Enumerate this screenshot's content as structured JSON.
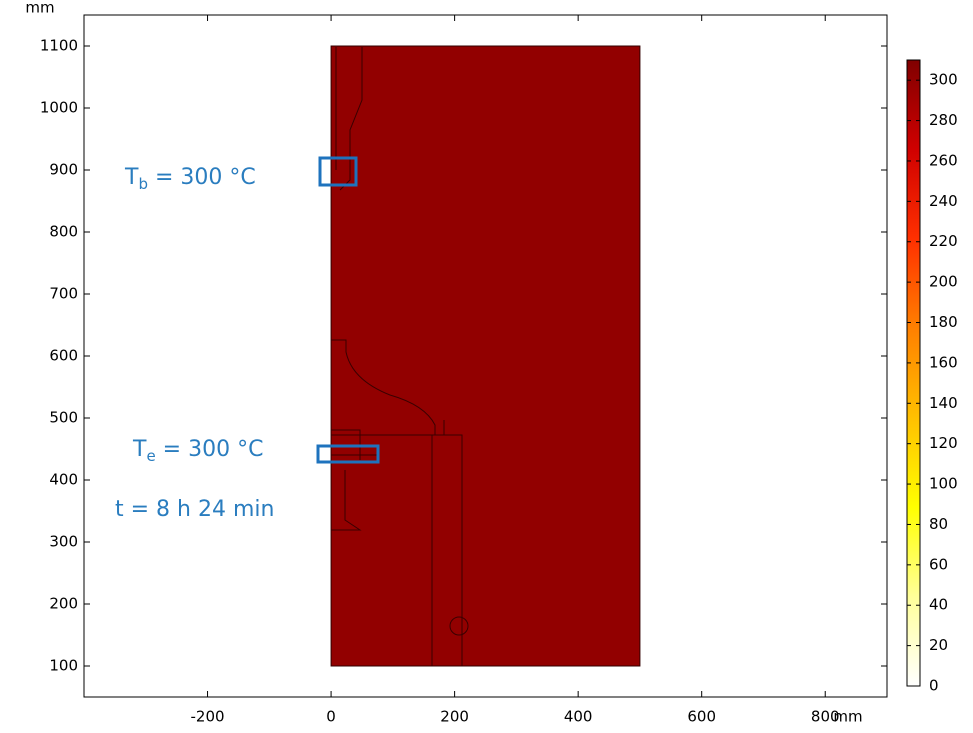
{
  "chart_data": {
    "type": "surface",
    "xlabel": "mm",
    "ylabel": "mm",
    "xlim": [
      -400,
      900
    ],
    "ylim": [
      50,
      1150
    ],
    "xticks": [
      -200,
      0,
      200,
      400,
      600,
      800
    ],
    "yticks": [
      100,
      200,
      300,
      400,
      500,
      600,
      700,
      800,
      900,
      1000,
      1100
    ],
    "surface": {
      "x": [
        0,
        500
      ],
      "y": [
        100,
        1100
      ],
      "value": 300
    },
    "colorbar_lim": [
      0,
      310
    ],
    "colorbar_ticks": [
      0,
      20,
      40,
      60,
      80,
      100,
      120,
      140,
      160,
      180,
      200,
      220,
      240,
      260,
      280,
      300
    ],
    "colormap": [
      "#ffffff",
      "#ffff99",
      "#ffff00",
      "#ffc000",
      "#ff8000",
      "#ff3000",
      "#d00000",
      "#800000"
    ],
    "annotations": [
      {
        "main": "T",
        "sub": "b",
        "rest": " = 300 °C"
      },
      {
        "main": "T",
        "sub": "e",
        "rest": " = 300 °C"
      },
      {
        "main": "t = 8 h 24 min"
      }
    ]
  }
}
